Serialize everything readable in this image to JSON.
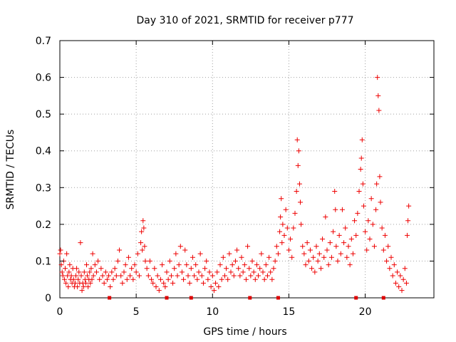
{
  "chart_data": {
    "type": "scatter",
    "title": "Day 310 of 2021, SRMTID for receiver p777",
    "xlabel": "GPS time / hours",
    "ylabel": "SRMTID / TECUs",
    "xlim": [
      0,
      24.5
    ],
    "ylim": [
      0,
      0.7
    ],
    "xticks": [
      0,
      5,
      10,
      15,
      20
    ],
    "yticks": [
      0,
      0.1,
      0.2,
      0.3,
      0.4,
      0.5,
      0.6,
      0.7
    ],
    "ytick_labels": [
      "0",
      "0.1",
      "0.2",
      "0.3",
      "0.4",
      "0.5",
      "0.6",
      "0.7"
    ],
    "grid": true,
    "marker": "plus",
    "color": "#ee0000",
    "gap_markers_x": [
      3.25,
      7.0,
      8.6,
      12.45,
      14.3,
      19.4,
      21.2
    ],
    "series": [
      {
        "name": "SRMTID",
        "points": [
          [
            0.0,
            0.12
          ],
          [
            0.05,
            0.13
          ],
          [
            0.1,
            0.09
          ],
          [
            0.15,
            0.07
          ],
          [
            0.2,
            0.06
          ],
          [
            0.25,
            0.1
          ],
          [
            0.3,
            0.05
          ],
          [
            0.35,
            0.08
          ],
          [
            0.4,
            0.04
          ],
          [
            0.45,
            0.12
          ],
          [
            0.5,
            0.06
          ],
          [
            0.55,
            0.03
          ],
          [
            0.6,
            0.07
          ],
          [
            0.65,
            0.09
          ],
          [
            0.7,
            0.05
          ],
          [
            0.75,
            0.06
          ],
          [
            0.8,
            0.04
          ],
          [
            0.85,
            0.08
          ],
          [
            0.9,
            0.05
          ],
          [
            0.95,
            0.03
          ],
          [
            1.0,
            0.04
          ],
          [
            1.05,
            0.06
          ],
          [
            1.1,
            0.08
          ],
          [
            1.15,
            0.03
          ],
          [
            1.2,
            0.05
          ],
          [
            1.25,
            0.07
          ],
          [
            1.3,
            0.04
          ],
          [
            1.35,
            0.15
          ],
          [
            1.4,
            0.06
          ],
          [
            1.45,
            0.02
          ],
          [
            1.5,
            0.04
          ],
          [
            1.55,
            0.03
          ],
          [
            1.6,
            0.07
          ],
          [
            1.65,
            0.05
          ],
          [
            1.7,
            0.04
          ],
          [
            1.75,
            0.09
          ],
          [
            1.8,
            0.06
          ],
          [
            1.85,
            0.03
          ],
          [
            1.9,
            0.05
          ],
          [
            1.95,
            0.07
          ],
          [
            2.0,
            0.04
          ],
          [
            2.05,
            0.08
          ],
          [
            2.1,
            0.05
          ],
          [
            2.15,
            0.12
          ],
          [
            2.2,
            0.06
          ],
          [
            2.3,
            0.09
          ],
          [
            2.4,
            0.07
          ],
          [
            2.5,
            0.1
          ],
          [
            2.6,
            0.05
          ],
          [
            2.7,
            0.08
          ],
          [
            2.8,
            0.06
          ],
          [
            2.9,
            0.04
          ],
          [
            3.0,
            0.07
          ],
          [
            3.1,
            0.05
          ],
          [
            3.2,
            0.06
          ],
          [
            3.3,
            0.03
          ],
          [
            3.4,
            0.07
          ],
          [
            3.5,
            0.05
          ],
          [
            3.6,
            0.08
          ],
          [
            3.7,
            0.06
          ],
          [
            3.8,
            0.1
          ],
          [
            3.9,
            0.13
          ],
          [
            4.0,
            0.06
          ],
          [
            4.1,
            0.04
          ],
          [
            4.2,
            0.07
          ],
          [
            4.3,
            0.09
          ],
          [
            4.4,
            0.05
          ],
          [
            4.5,
            0.11
          ],
          [
            4.6,
            0.06
          ],
          [
            4.7,
            0.08
          ],
          [
            4.8,
            0.05
          ],
          [
            4.9,
            0.09
          ],
          [
            5.0,
            0.07
          ],
          [
            5.1,
            0.12
          ],
          [
            5.2,
            0.06
          ],
          [
            5.3,
            0.15
          ],
          [
            5.35,
            0.18
          ],
          [
            5.4,
            0.13
          ],
          [
            5.45,
            0.21
          ],
          [
            5.5,
            0.19
          ],
          [
            5.55,
            0.14
          ],
          [
            5.6,
            0.1
          ],
          [
            5.7,
            0.08
          ],
          [
            5.8,
            0.06
          ],
          [
            5.9,
            0.1
          ],
          [
            6.0,
            0.05
          ],
          [
            6.1,
            0.04
          ],
          [
            6.2,
            0.08
          ],
          [
            6.3,
            0.03
          ],
          [
            6.4,
            0.06
          ],
          [
            6.5,
            0.02
          ],
          [
            6.6,
            0.05
          ],
          [
            6.7,
            0.09
          ],
          [
            6.8,
            0.04
          ],
          [
            6.9,
            0.03
          ],
          [
            7.0,
            0.07
          ],
          [
            7.1,
            0.05
          ],
          [
            7.2,
            0.1
          ],
          [
            7.3,
            0.06
          ],
          [
            7.4,
            0.04
          ],
          [
            7.5,
            0.08
          ],
          [
            7.6,
            0.12
          ],
          [
            7.7,
            0.06
          ],
          [
            7.8,
            0.09
          ],
          [
            7.9,
            0.14
          ],
          [
            8.0,
            0.07
          ],
          [
            8.1,
            0.05
          ],
          [
            8.2,
            0.13
          ],
          [
            8.3,
            0.09
          ],
          [
            8.4,
            0.06
          ],
          [
            8.5,
            0.04
          ],
          [
            8.6,
            0.08
          ],
          [
            8.7,
            0.11
          ],
          [
            8.8,
            0.06
          ],
          [
            8.9,
            0.09
          ],
          [
            9.0,
            0.05
          ],
          [
            9.1,
            0.07
          ],
          [
            9.2,
            0.12
          ],
          [
            9.3,
            0.06
          ],
          [
            9.4,
            0.04
          ],
          [
            9.5,
            0.08
          ],
          [
            9.6,
            0.1
          ],
          [
            9.7,
            0.05
          ],
          [
            9.8,
            0.07
          ],
          [
            9.9,
            0.03
          ],
          [
            10.0,
            0.06
          ],
          [
            10.1,
            0.02
          ],
          [
            10.2,
            0.04
          ],
          [
            10.3,
            0.07
          ],
          [
            10.4,
            0.03
          ],
          [
            10.5,
            0.09
          ],
          [
            10.6,
            0.05
          ],
          [
            10.7,
            0.11
          ],
          [
            10.8,
            0.06
          ],
          [
            10.9,
            0.08
          ],
          [
            11.0,
            0.05
          ],
          [
            11.1,
            0.12
          ],
          [
            11.2,
            0.07
          ],
          [
            11.3,
            0.09
          ],
          [
            11.4,
            0.06
          ],
          [
            11.5,
            0.1
          ],
          [
            11.6,
            0.13
          ],
          [
            11.7,
            0.08
          ],
          [
            11.8,
            0.06
          ],
          [
            11.9,
            0.11
          ],
          [
            12.0,
            0.07
          ],
          [
            12.1,
            0.09
          ],
          [
            12.2,
            0.05
          ],
          [
            12.3,
            0.14
          ],
          [
            12.4,
            0.08
          ],
          [
            12.5,
            0.06
          ],
          [
            12.6,
            0.1
          ],
          [
            12.7,
            0.07
          ],
          [
            12.8,
            0.05
          ],
          [
            12.9,
            0.09
          ],
          [
            13.0,
            0.06
          ],
          [
            13.1,
            0.08
          ],
          [
            13.2,
            0.12
          ],
          [
            13.3,
            0.07
          ],
          [
            13.4,
            0.05
          ],
          [
            13.5,
            0.09
          ],
          [
            13.6,
            0.06
          ],
          [
            13.7,
            0.11
          ],
          [
            13.8,
            0.07
          ],
          [
            13.9,
            0.05
          ],
          [
            14.0,
            0.08
          ],
          [
            14.1,
            0.1
          ],
          [
            14.2,
            0.14
          ],
          [
            14.3,
            0.12
          ],
          [
            14.4,
            0.18
          ],
          [
            14.45,
            0.22
          ],
          [
            14.5,
            0.27
          ],
          [
            14.55,
            0.15
          ],
          [
            14.6,
            0.2
          ],
          [
            14.7,
            0.17
          ],
          [
            14.8,
            0.24
          ],
          [
            14.9,
            0.19
          ],
          [
            15.0,
            0.13
          ],
          [
            15.1,
            0.16
          ],
          [
            15.2,
            0.11
          ],
          [
            15.3,
            0.19
          ],
          [
            15.4,
            0.23
          ],
          [
            15.5,
            0.29
          ],
          [
            15.55,
            0.43
          ],
          [
            15.6,
            0.36
          ],
          [
            15.65,
            0.4
          ],
          [
            15.7,
            0.31
          ],
          [
            15.75,
            0.26
          ],
          [
            15.8,
            0.2
          ],
          [
            15.9,
            0.14
          ],
          [
            16.0,
            0.12
          ],
          [
            16.1,
            0.09
          ],
          [
            16.2,
            0.15
          ],
          [
            16.3,
            0.1
          ],
          [
            16.4,
            0.13
          ],
          [
            16.5,
            0.08
          ],
          [
            16.6,
            0.11
          ],
          [
            16.7,
            0.07
          ],
          [
            16.8,
            0.14
          ],
          [
            16.9,
            0.1
          ],
          [
            17.0,
            0.12
          ],
          [
            17.1,
            0.08
          ],
          [
            17.2,
            0.16
          ],
          [
            17.3,
            0.11
          ],
          [
            17.4,
            0.22
          ],
          [
            17.5,
            0.13
          ],
          [
            17.6,
            0.09
          ],
          [
            17.7,
            0.15
          ],
          [
            17.8,
            0.11
          ],
          [
            17.9,
            0.18
          ],
          [
            18.0,
            0.29
          ],
          [
            18.05,
            0.24
          ],
          [
            18.1,
            0.14
          ],
          [
            18.2,
            0.1
          ],
          [
            18.3,
            0.17
          ],
          [
            18.4,
            0.12
          ],
          [
            18.5,
            0.24
          ],
          [
            18.6,
            0.15
          ],
          [
            18.7,
            0.19
          ],
          [
            18.8,
            0.11
          ],
          [
            18.9,
            0.14
          ],
          [
            19.0,
            0.09
          ],
          [
            19.1,
            0.16
          ],
          [
            19.2,
            0.12
          ],
          [
            19.3,
            0.21
          ],
          [
            19.4,
            0.17
          ],
          [
            19.5,
            0.23
          ],
          [
            19.6,
            0.29
          ],
          [
            19.7,
            0.35
          ],
          [
            19.75,
            0.38
          ],
          [
            19.8,
            0.43
          ],
          [
            19.85,
            0.31
          ],
          [
            19.9,
            0.25
          ],
          [
            20.0,
            0.18
          ],
          [
            20.1,
            0.13
          ],
          [
            20.2,
            0.21
          ],
          [
            20.3,
            0.16
          ],
          [
            20.4,
            0.27
          ],
          [
            20.5,
            0.2
          ],
          [
            20.6,
            0.14
          ],
          [
            20.7,
            0.24
          ],
          [
            20.75,
            0.31
          ],
          [
            20.8,
            0.6
          ],
          [
            20.85,
            0.55
          ],
          [
            20.9,
            0.51
          ],
          [
            20.95,
            0.33
          ],
          [
            21.0,
            0.26
          ],
          [
            21.1,
            0.19
          ],
          [
            21.2,
            0.13
          ],
          [
            21.3,
            0.17
          ],
          [
            21.4,
            0.1
          ],
          [
            21.5,
            0.14
          ],
          [
            21.6,
            0.08
          ],
          [
            21.7,
            0.11
          ],
          [
            21.8,
            0.06
          ],
          [
            21.9,
            0.09
          ],
          [
            22.0,
            0.04
          ],
          [
            22.1,
            0.07
          ],
          [
            22.2,
            0.03
          ],
          [
            22.3,
            0.06
          ],
          [
            22.4,
            0.02
          ],
          [
            22.5,
            0.05
          ],
          [
            22.6,
            0.08
          ],
          [
            22.7,
            0.04
          ],
          [
            22.75,
            0.17
          ],
          [
            22.8,
            0.21
          ],
          [
            22.85,
            0.25
          ]
        ]
      }
    ]
  }
}
